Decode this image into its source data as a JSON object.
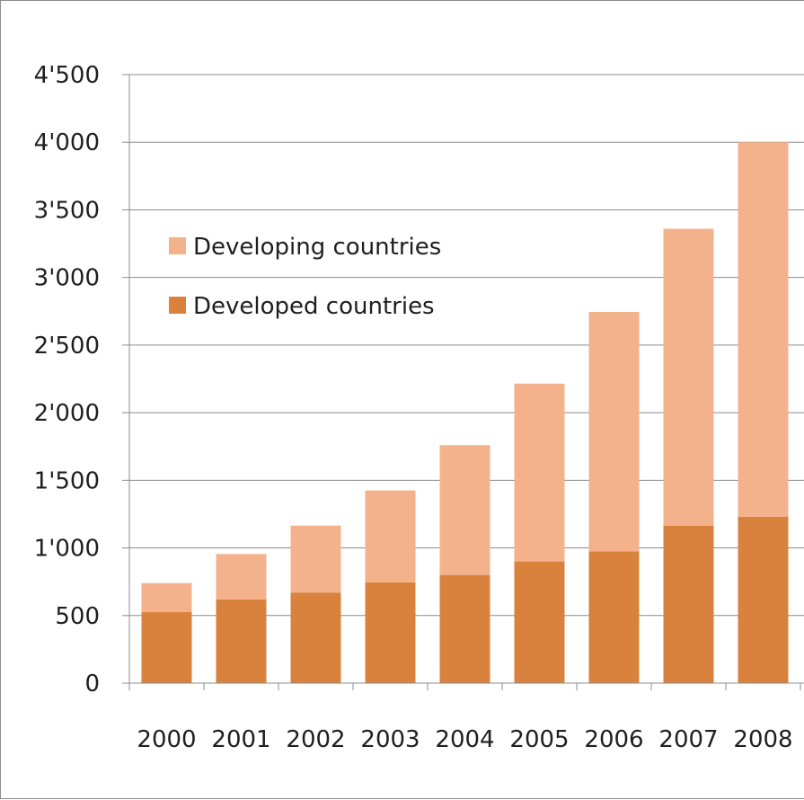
{
  "chart_data": {
    "type": "bar",
    "stacked": true,
    "categories": [
      "2000",
      "2001",
      "2002",
      "2003",
      "2004",
      "2005",
      "2006",
      "2007",
      "2008"
    ],
    "series": [
      {
        "name": "Developed countries",
        "color": "#d9823e",
        "values": [
          525,
          620,
          670,
          745,
          800,
          900,
          975,
          1165,
          1230
        ]
      },
      {
        "name": "Developing countries",
        "color": "#f4b28c",
        "values": [
          215,
          335,
          495,
          680,
          960,
          1315,
          1770,
          2195,
          2770
        ]
      }
    ],
    "ylim": [
      0,
      4500
    ],
    "yticks": [
      "0",
      "500",
      "1'000",
      "1'500",
      "2'000",
      "2'500",
      "3'000",
      "3'500",
      "4'000",
      "4'500"
    ],
    "ytick_values": [
      0,
      500,
      1000,
      1500,
      2000,
      2500,
      3000,
      3500,
      4000,
      4500
    ],
    "grid": true,
    "legend_position": "top-left",
    "legend_order": [
      1,
      0
    ],
    "title": "",
    "xlabel": "",
    "ylabel": ""
  }
}
